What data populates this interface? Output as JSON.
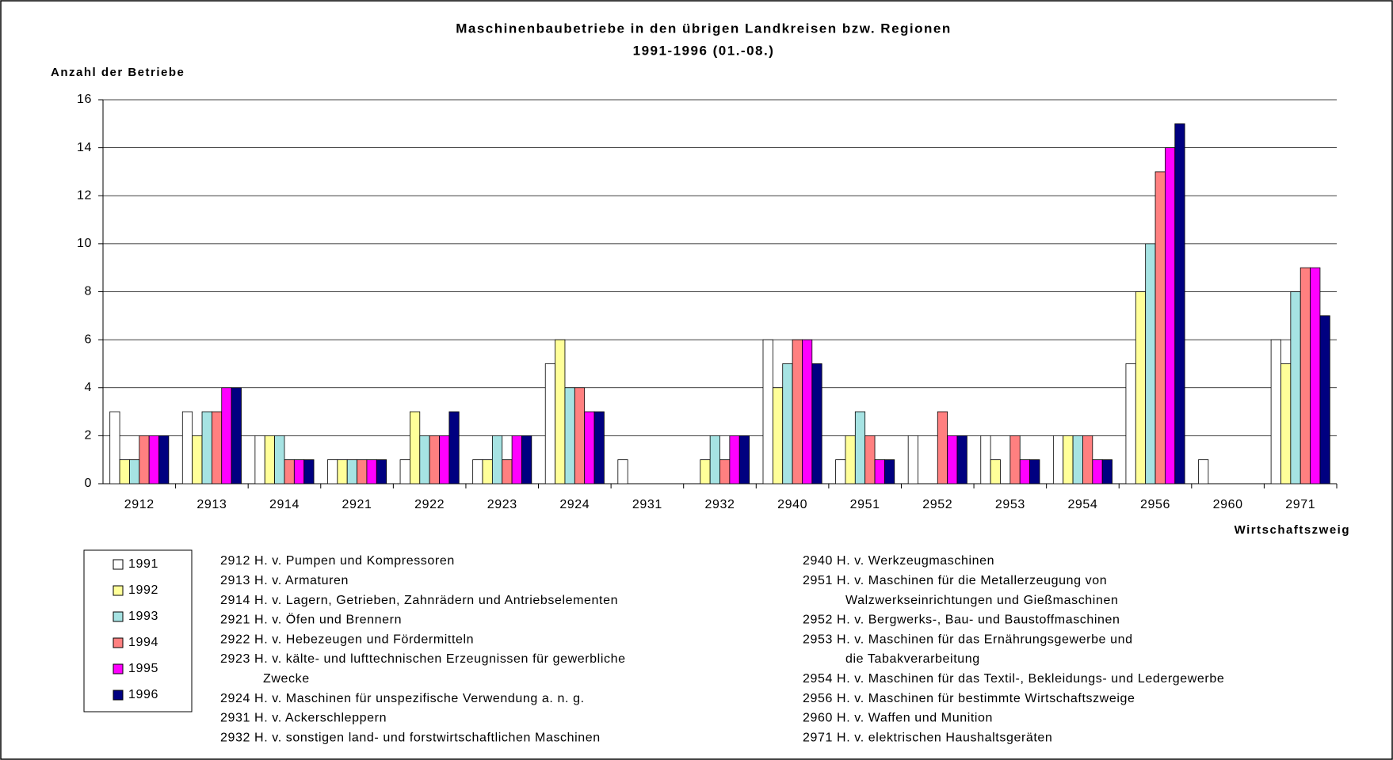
{
  "chart_data": {
    "type": "bar",
    "title": [
      "Maschinenbaubetriebe in den übrigen Landkreisen bzw. Regionen",
      "1991-1996 (01.-08.)"
    ],
    "y_label": "Anzahl der Betriebe",
    "x_label": "Wirtschaftszweig",
    "categories": [
      "2912",
      "2913",
      "2914",
      "2921",
      "2922",
      "2923",
      "2924",
      "2931",
      "2932",
      "2940",
      "2951",
      "2952",
      "2953",
      "2954",
      "2956",
      "2960",
      "2971"
    ],
    "series": [
      {
        "name": "1991",
        "color": "#ffffff",
        "values": [
          3,
          3,
          2,
          1,
          1,
          1,
          5,
          1,
          0,
          6,
          1,
          2,
          2,
          2,
          5,
          1,
          6
        ]
      },
      {
        "name": "1992",
        "color": "#ffff99",
        "values": [
          1,
          2,
          2,
          1,
          3,
          1,
          6,
          0,
          1,
          4,
          2,
          0,
          1,
          2,
          8,
          0,
          5
        ]
      },
      {
        "name": "1993",
        "color": "#a6e3e3",
        "values": [
          1,
          3,
          2,
          1,
          2,
          2,
          4,
          0,
          2,
          5,
          3,
          0,
          0,
          2,
          10,
          0,
          8
        ]
      },
      {
        "name": "1994",
        "color": "#ff8080",
        "values": [
          2,
          3,
          1,
          1,
          2,
          1,
          4,
          0,
          1,
          6,
          2,
          3,
          2,
          2,
          13,
          0,
          9
        ]
      },
      {
        "name": "1995",
        "color": "#ff00ff",
        "values": [
          2,
          4,
          1,
          1,
          2,
          2,
          3,
          0,
          2,
          6,
          1,
          2,
          1,
          1,
          14,
          0,
          9
        ]
      },
      {
        "name": "1996",
        "color": "#000080",
        "values": [
          2,
          4,
          1,
          1,
          3,
          2,
          3,
          0,
          2,
          5,
          1,
          2,
          1,
          1,
          15,
          0,
          7
        ]
      }
    ],
    "ylim": [
      0,
      16
    ],
    "yticks": [
      0,
      2,
      4,
      6,
      8,
      10,
      12,
      14,
      16
    ],
    "grid": true,
    "notes": {
      "left": [
        [
          "2912 H. v. Pumpen und Kompressoren"
        ],
        [
          "2913 H. v. Armaturen"
        ],
        [
          "2914 H. v. Lagern, Getrieben, Zahnrädern und Antriebselementen"
        ],
        [
          "2921 H. v. Öfen und Brennern"
        ],
        [
          "2922 H. v. Hebezeugen und Fördermitteln"
        ],
        [
          "2923 H. v. kälte- und lufttechnischen Erzeugnissen für gewerbliche",
          "Zwecke"
        ],
        [
          "2924 H. v. Maschinen für unspezifische Verwendung a. n. g."
        ],
        [
          "2931 H. v. Ackerschleppern"
        ],
        [
          "2932 H. v. sonstigen land- und forstwirtschaftlichen Maschinen"
        ]
      ],
      "right": [
        [
          "2940 H. v. Werkzeugmaschinen"
        ],
        [
          "2951 H. v. Maschinen für die Metallerzeugung von",
          "Walzwerkseinrichtungen und Gießmaschinen"
        ],
        [
          "2952 H. v. Bergwerks-, Bau- und Baustoffmaschinen"
        ],
        [
          "2953 H. v. Maschinen für das Ernährungsgewerbe und",
          "die Tabakverarbeitung"
        ],
        [
          "2954 H. v. Maschinen für das Textil-, Bekleidungs- und Ledergewerbe"
        ],
        [
          "2956 H. v. Maschinen für bestimmte Wirtschaftszweige"
        ],
        [
          "2960 H. v. Waffen und Munition"
        ],
        [
          "2971 H. v. elektrischen Haushaltsgeräten"
        ]
      ]
    }
  }
}
